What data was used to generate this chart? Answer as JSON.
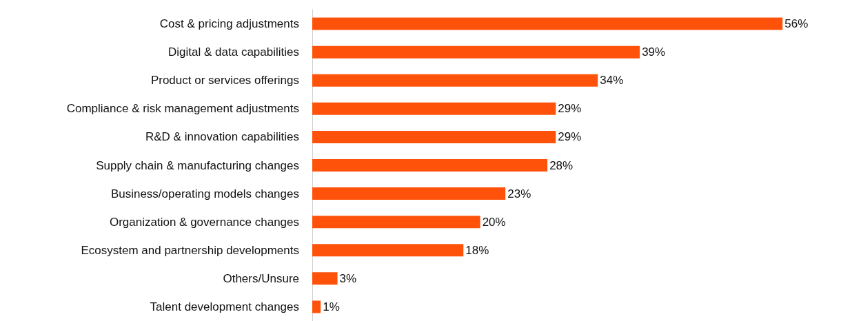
{
  "chart_data": {
    "type": "bar",
    "orientation": "horizontal",
    "categories": [
      "Cost & pricing adjustments",
      "Digital & data capabilities",
      "Product or services offerings",
      "Compliance & risk management adjustments",
      "R&D & innovation capabilities",
      "Supply chain & manufacturing changes",
      "Business/operating models changes",
      "Organization & governance changes",
      "Ecosystem and partnership developments",
      "Others/Unsure",
      "Talent development changes"
    ],
    "values": [
      56,
      39,
      34,
      29,
      29,
      28,
      23,
      20,
      18,
      3,
      1
    ],
    "value_labels": [
      "56%",
      "39%",
      "34%",
      "29%",
      "29%",
      "28%",
      "23%",
      "20%",
      "18%",
      "3%",
      "1%"
    ],
    "color": "#fe520b"
  }
}
